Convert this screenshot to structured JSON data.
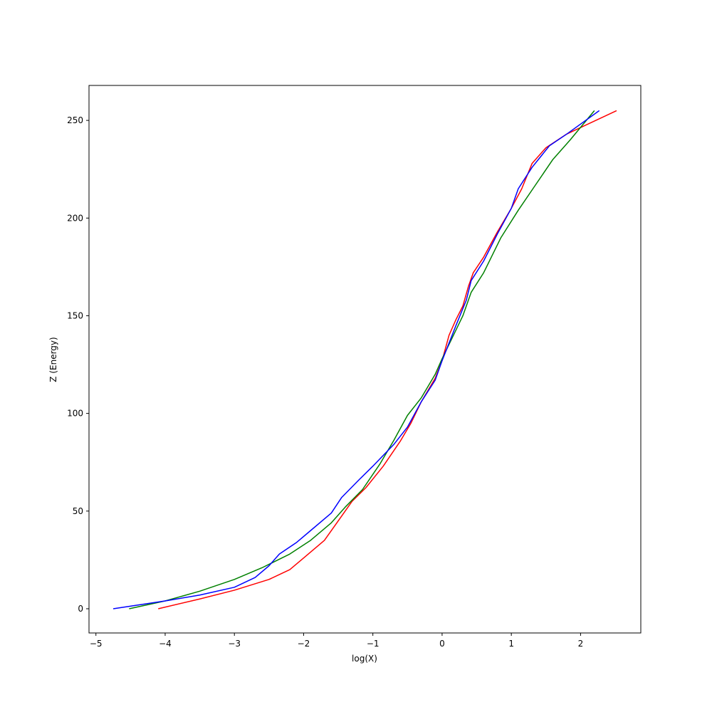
{
  "chart_data": {
    "type": "line",
    "x_label": "log(X)",
    "y_label": "Z (Energy)",
    "xlim": [
      -5.1,
      2.87
    ],
    "ylim": [
      -12.4,
      267.9
    ],
    "xticks": [
      {
        "value": -5,
        "label": "−5"
      },
      {
        "value": -4,
        "label": "−4"
      },
      {
        "value": -3,
        "label": "−3"
      },
      {
        "value": -2,
        "label": "−2"
      },
      {
        "value": -1,
        "label": "−1"
      },
      0,
      1,
      2
    ],
    "yticks": [
      0,
      50,
      100,
      150,
      200,
      250
    ],
    "grid": false,
    "series": [
      {
        "color": "#ff0000",
        "x": [
          -4.1,
          -3.5,
          -3,
          -2.5,
          -2.2,
          -2,
          -1.7,
          -1.5,
          -1.3,
          -1.1,
          -0.85,
          -0.6,
          -0.45,
          -0.3,
          -0.1,
          0,
          0.1,
          0.2,
          0.3,
          0.38,
          0.45,
          0.6,
          0.8,
          1.0,
          1.15,
          1.3,
          1.5,
          1.8,
          2.1,
          2.52
        ],
        "values": [
          0,
          5,
          9.5,
          15,
          20,
          26,
          35,
          45,
          55,
          62,
          73,
          86,
          95,
          106,
          118,
          127,
          140,
          148,
          155,
          165,
          172,
          180,
          193,
          205,
          215,
          228,
          236,
          243,
          248,
          255
        ]
      },
      {
        "color": "#008000",
        "x": [
          -4.52,
          -4,
          -3.5,
          -3,
          -2.6,
          -2.2,
          -1.9,
          -1.6,
          -1.4,
          -1.15,
          -0.9,
          -0.7,
          -0.5,
          -0.3,
          -0.1,
          0,
          0.15,
          0.3,
          0.42,
          0.6,
          0.85,
          1.1,
          1.35,
          1.6,
          1.85,
          2.2
        ],
        "values": [
          0,
          4,
          9,
          15,
          21,
          28,
          35,
          44,
          52,
          61,
          74,
          86,
          99,
          108,
          120,
          128,
          139,
          150,
          162,
          172,
          190,
          204,
          217,
          230,
          240,
          255
        ]
      },
      {
        "color": "#0000ff",
        "x": [
          -4.75,
          -4,
          -3.5,
          -3,
          -2.7,
          -2.5,
          -2.35,
          -2.1,
          -1.9,
          -1.6,
          -1.45,
          -1.2,
          -1,
          -0.7,
          -0.5,
          -0.3,
          -0.1,
          0,
          0.2,
          0.35,
          0.42,
          0.6,
          0.8,
          1.0,
          1.1,
          1.3,
          1.55,
          1.8,
          2.27
        ],
        "values": [
          0,
          4,
          7,
          11,
          16,
          22,
          28,
          34,
          40,
          49,
          57,
          66,
          73,
          84,
          93,
          106,
          117,
          127,
          145,
          158,
          168,
          178,
          192,
          205,
          215,
          226,
          237,
          243,
          255
        ]
      }
    ]
  }
}
